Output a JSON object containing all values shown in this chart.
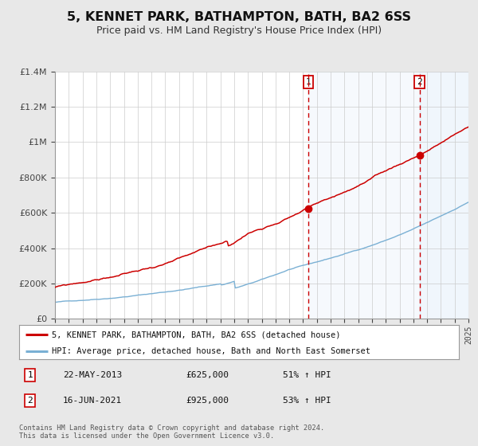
{
  "title": "5, KENNET PARK, BATHAMPTON, BATH, BA2 6SS",
  "subtitle": "Price paid vs. HM Land Registry's House Price Index (HPI)",
  "title_fontsize": 11.5,
  "subtitle_fontsize": 9,
  "background_color": "#e8e8e8",
  "plot_bg_color": "#ffffff",
  "red_line_color": "#cc0000",
  "blue_line_color": "#7ab0d4",
  "sale1_date": 2013.38,
  "sale1_price": 625000,
  "sale2_date": 2021.45,
  "sale2_price": 925000,
  "xmin": 1995,
  "xmax": 2025,
  "ymin": 0,
  "ymax": 1400000,
  "yticks": [
    0,
    200000,
    400000,
    600000,
    800000,
    1000000,
    1200000,
    1400000
  ],
  "ytick_labels": [
    "£0",
    "£200K",
    "£400K",
    "£600K",
    "£800K",
    "£1M",
    "£1.2M",
    "£1.4M"
  ],
  "legend_entry1": "5, KENNET PARK, BATHAMPTON, BATH, BA2 6SS (detached house)",
  "legend_entry2": "HPI: Average price, detached house, Bath and North East Somerset",
  "annotation1_date": "22-MAY-2013",
  "annotation1_price": "£625,000",
  "annotation1_hpi": "51% ↑ HPI",
  "annotation2_date": "16-JUN-2021",
  "annotation2_price": "£925,000",
  "annotation2_hpi": "53% ↑ HPI",
  "footer1": "Contains HM Land Registry data © Crown copyright and database right 2024.",
  "footer2": "This data is licensed under the Open Government Licence v3.0."
}
